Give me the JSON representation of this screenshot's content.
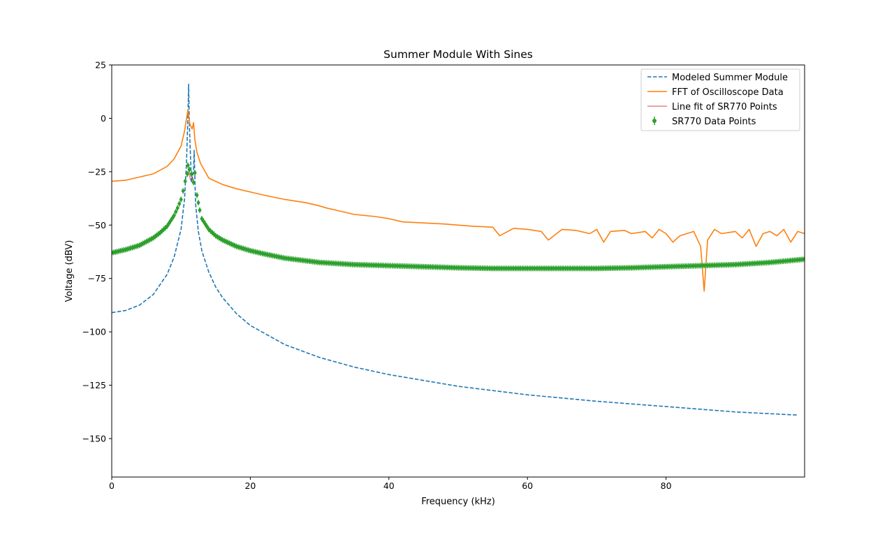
{
  "chart_data": {
    "type": "line",
    "title": "Summer Module With Sines",
    "xlabel": "Frequency (kHz)",
    "ylabel": "Voltage (dBV)",
    "xlim": [
      0,
      100
    ],
    "ylim": [
      -168,
      25
    ],
    "xticks": [
      0,
      20,
      40,
      60,
      80
    ],
    "yticks": [
      25,
      0,
      -25,
      -50,
      -75,
      -100,
      -125,
      -150
    ],
    "xtick_labels": [
      "0",
      "20",
      "40",
      "60",
      "80"
    ],
    "ytick_labels": [
      "25",
      "0",
      "−25",
      "−50",
      "−75",
      "−100",
      "−125",
      "−150"
    ],
    "grid": false,
    "legend_position": "top-right",
    "series": [
      {
        "name": "Modeled Summer Module",
        "style": "dashed",
        "color": "#1f77b4",
        "x": [
          0,
          2,
          4,
          6,
          8,
          9,
          10,
          10.5,
          10.8,
          11.0,
          11.1,
          11.2,
          11.5,
          11.8,
          11.9,
          12.1,
          12.5,
          13,
          14,
          15,
          16,
          18,
          20,
          25,
          30,
          35,
          40,
          50,
          60,
          70,
          80,
          90,
          99
        ],
        "y": [
          -91,
          -90,
          -87.5,
          -82.5,
          -73,
          -65,
          -52,
          -38,
          -20,
          2,
          16,
          -3,
          -30,
          -25,
          -15,
          -40,
          -53,
          -62,
          -72,
          -79,
          -84,
          -91.5,
          -97,
          -106,
          -112,
          -116.5,
          -120,
          -125.5,
          -129.5,
          -132.5,
          -135,
          -137.5,
          -139
        ]
      },
      {
        "name": "FFT of Oscilloscope Data",
        "style": "solid",
        "color": "#ff7f0e",
        "x": [
          0,
          2,
          4,
          6,
          8,
          9,
          10,
          10.5,
          10.8,
          11.0,
          11.1,
          11.3,
          11.6,
          11.8,
          12.0,
          12.3,
          12.8,
          14,
          15,
          16,
          18,
          20,
          22,
          25,
          28,
          30,
          31,
          33,
          35,
          38,
          40,
          42,
          45,
          48,
          50,
          52,
          55,
          56,
          58,
          60,
          62,
          63,
          65,
          67,
          69,
          70,
          71,
          72,
          74,
          75,
          77,
          78,
          79,
          80,
          81,
          82,
          83,
          84,
          85,
          85.5,
          86,
          87,
          88,
          90,
          91,
          92,
          93,
          94,
          95,
          96,
          97,
          98,
          99,
          100
        ],
        "y": [
          -29.5,
          -29,
          -27.5,
          -26,
          -22.5,
          -19,
          -13,
          -6,
          0,
          4,
          1,
          -3,
          -5,
          -2,
          -10,
          -16,
          -21,
          -28,
          -29.5,
          -31,
          -33,
          -34.5,
          -36,
          -38,
          -39.5,
          -41,
          -42,
          -43.5,
          -45,
          -46,
          -47,
          -48.5,
          -49,
          -49.5,
          -50,
          -50.5,
          -51,
          -55,
          -51.5,
          -52,
          -53,
          -57,
          -52,
          -52.5,
          -54,
          -52,
          -58,
          -53,
          -52.5,
          -54,
          -53,
          -56,
          -52,
          -54,
          -58,
          -55,
          -54,
          -53,
          -60,
          -81,
          -57,
          -52,
          -54,
          -53,
          -56,
          -52,
          -60,
          -54,
          -53,
          -55,
          -52,
          -58,
          -53,
          -54
        ]
      },
      {
        "name": "Line fit of SR770 Points",
        "style": "solid",
        "color": "#e88383",
        "x": [
          10.9,
          11.0,
          11.1,
          11.2,
          11.3,
          11.4,
          11.5,
          11.6,
          11.7,
          11.8
        ],
        "y": [
          -27.5,
          -26,
          -25,
          -26,
          -28,
          -29,
          -28.5,
          -27,
          -28,
          -30
        ]
      },
      {
        "name": "SR770 Data Points",
        "style": "errorbar",
        "color": "#2ca02c",
        "x": [
          0,
          2,
          4,
          6,
          7,
          8,
          9,
          9.5,
          10,
          10.3,
          10.6,
          10.9,
          11.0,
          11.2,
          11.5,
          11.8,
          12.0,
          12.3,
          12.7,
          13,
          14,
          15,
          16,
          18,
          20,
          22,
          25,
          30,
          35,
          40,
          45,
          50,
          55,
          60,
          65,
          70,
          75,
          80,
          85,
          90,
          95,
          100
        ],
        "y": [
          -63,
          -61.5,
          -59.5,
          -56,
          -53.5,
          -50.5,
          -45.5,
          -42,
          -38,
          -34,
          -29.5,
          -26,
          -22,
          -24,
          -26,
          -30,
          -25.5,
          -36,
          -43,
          -47,
          -52,
          -55,
          -57,
          -60,
          -62,
          -63.5,
          -65.5,
          -67.5,
          -68.5,
          -69,
          -69.5,
          -70,
          -70.3,
          -70.3,
          -70.3,
          -70.3,
          -70,
          -69.5,
          -69,
          -68.5,
          -67.5,
          -66
        ]
      }
    ]
  }
}
